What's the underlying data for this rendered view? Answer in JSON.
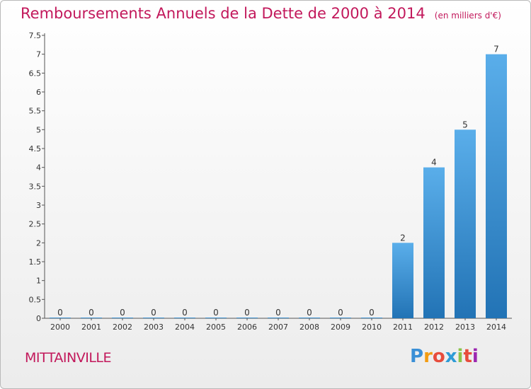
{
  "title": "Remboursements Annuels de la Dette de 2000 à 2014",
  "subtitle": "(en milliers d'€)",
  "commune": "MITTAINVILLE",
  "logo": {
    "letters": [
      "P",
      "r",
      "o",
      "x",
      "i",
      "t",
      "i"
    ],
    "colors": [
      "#3a8fd6",
      "#f39c12",
      "#e74c3c",
      "#2e9bd6",
      "#8bc34a",
      "#e74c3c",
      "#9c27b0"
    ]
  },
  "chart_data": {
    "type": "bar",
    "title": "Remboursements Annuels de la Dette de 2000 à 2014",
    "subtitle": "(en milliers d'€)",
    "categories": [
      "2000",
      "2001",
      "2002",
      "2003",
      "2004",
      "2005",
      "2006",
      "2007",
      "2008",
      "2009",
      "2010",
      "2011",
      "2012",
      "2013",
      "2014"
    ],
    "values": [
      0,
      0,
      0,
      0,
      0,
      0,
      0,
      0,
      0,
      0,
      0,
      2,
      4,
      5,
      7
    ],
    "data_labels": [
      "0",
      "0",
      "0",
      "0",
      "0",
      "0",
      "0",
      "0",
      "0",
      "0",
      "0",
      "2",
      "4",
      "5",
      "7"
    ],
    "y_ticks": [
      "0",
      "0.5",
      "1",
      "1.5",
      "2",
      "2.5",
      "3",
      "3.5",
      "4",
      "4.5",
      "5",
      "5.5",
      "6",
      "6.5",
      "7",
      "7.5"
    ],
    "ylim": [
      0,
      7.5
    ],
    "grid": false,
    "bar_color": "#3d93d8"
  }
}
